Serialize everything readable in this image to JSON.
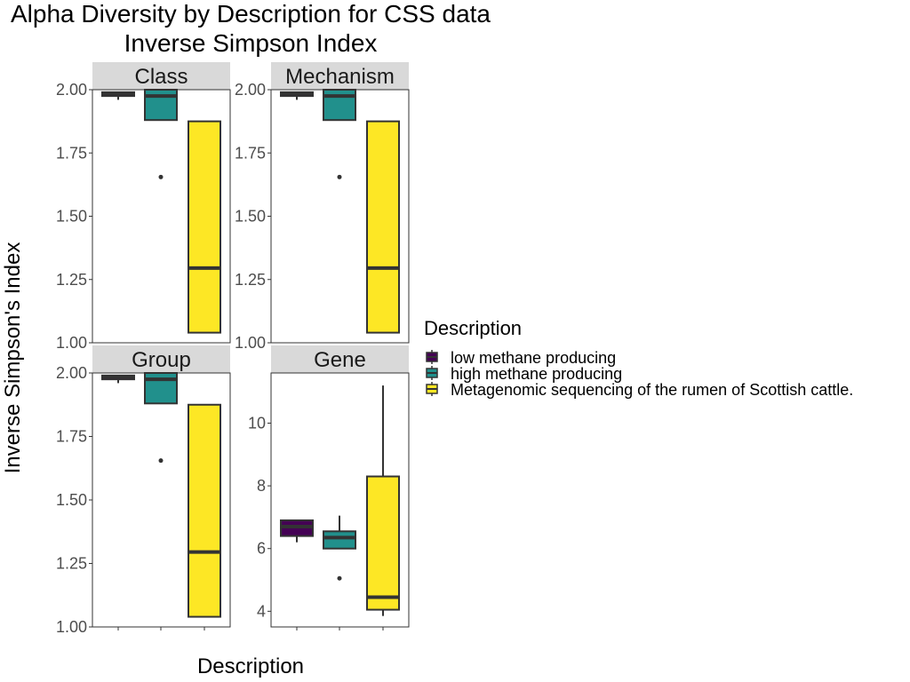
{
  "chart_data": {
    "type": "boxplot",
    "title_lines": [
      "Alpha Diversity by Description for CSS data",
      "Inverse Simpson Index"
    ],
    "xlabel": "Description",
    "ylabel": "Inverse Simpson's Index",
    "legend": {
      "title": "Description",
      "placement": "right",
      "entries": [
        {
          "label": "low methane producing",
          "color": "#440154"
        },
        {
          "label": "high methane producing",
          "color": "#21908C"
        },
        {
          "label": "Metagenomic sequencing of the rumen of Scottish cattle.",
          "color": "#FDE725"
        }
      ]
    },
    "grid": false,
    "panels": [
      {
        "name": "Class",
        "ylim": [
          1.0,
          2.0
        ],
        "yticks": [
          1.0,
          1.25,
          1.5,
          1.75,
          2.0
        ],
        "ytick_labels": [
          "1.00",
          "1.25",
          "1.50",
          "1.75",
          "2.00"
        ],
        "boxes": [
          {
            "group": 0,
            "whisker_low": 1.96,
            "q1": 1.975,
            "median": 1.985,
            "q3": 1.99,
            "whisker_high": 1.99,
            "outliers": []
          },
          {
            "group": 1,
            "whisker_low": 1.88,
            "q1": 1.88,
            "median": 1.975,
            "q3": 2.0,
            "whisker_high": 2.0,
            "outliers": [
              1.655
            ]
          },
          {
            "group": 2,
            "whisker_low": 1.04,
            "q1": 1.04,
            "median": 1.295,
            "q3": 1.875,
            "whisker_high": 1.875,
            "outliers": []
          }
        ]
      },
      {
        "name": "Mechanism",
        "ylim": [
          1.0,
          2.0
        ],
        "yticks": [
          1.0,
          1.25,
          1.5,
          1.75,
          2.0
        ],
        "ytick_labels": [
          "1.00",
          "1.25",
          "1.50",
          "1.75",
          "2.00"
        ],
        "boxes": [
          {
            "group": 0,
            "whisker_low": 1.96,
            "q1": 1.975,
            "median": 1.985,
            "q3": 1.99,
            "whisker_high": 1.99,
            "outliers": []
          },
          {
            "group": 1,
            "whisker_low": 1.88,
            "q1": 1.88,
            "median": 1.975,
            "q3": 2.0,
            "whisker_high": 2.0,
            "outliers": [
              1.655
            ]
          },
          {
            "group": 2,
            "whisker_low": 1.04,
            "q1": 1.04,
            "median": 1.295,
            "q3": 1.875,
            "whisker_high": 1.875,
            "outliers": []
          }
        ]
      },
      {
        "name": "Group",
        "ylim": [
          1.0,
          2.0
        ],
        "yticks": [
          1.0,
          1.25,
          1.5,
          1.75,
          2.0
        ],
        "ytick_labels": [
          "1.00",
          "1.25",
          "1.50",
          "1.75",
          "2.00"
        ],
        "boxes": [
          {
            "group": 0,
            "whisker_low": 1.96,
            "q1": 1.975,
            "median": 1.985,
            "q3": 1.99,
            "whisker_high": 1.99,
            "outliers": []
          },
          {
            "group": 1,
            "whisker_low": 1.88,
            "q1": 1.88,
            "median": 1.975,
            "q3": 2.0,
            "whisker_high": 2.0,
            "outliers": [
              1.655
            ]
          },
          {
            "group": 2,
            "whisker_low": 1.04,
            "q1": 1.04,
            "median": 1.295,
            "q3": 1.875,
            "whisker_high": 1.875,
            "outliers": []
          }
        ]
      },
      {
        "name": "Gene",
        "ylim": [
          3.5,
          11.6
        ],
        "yticks": [
          4,
          6,
          8,
          10
        ],
        "ytick_labels": [
          "4",
          "6",
          "8",
          "10"
        ],
        "boxes": [
          {
            "group": 0,
            "whisker_low": 6.2,
            "q1": 6.4,
            "median": 6.7,
            "q3": 6.9,
            "whisker_high": 6.9,
            "outliers": []
          },
          {
            "group": 1,
            "whisker_low": 6.0,
            "q1": 6.0,
            "median": 6.35,
            "q3": 6.55,
            "whisker_high": 7.05,
            "outliers": [
              5.05
            ]
          },
          {
            "group": 2,
            "whisker_low": 3.85,
            "q1": 4.05,
            "median": 4.45,
            "q3": 8.3,
            "whisker_high": 11.2,
            "outliers": []
          }
        ]
      }
    ]
  }
}
